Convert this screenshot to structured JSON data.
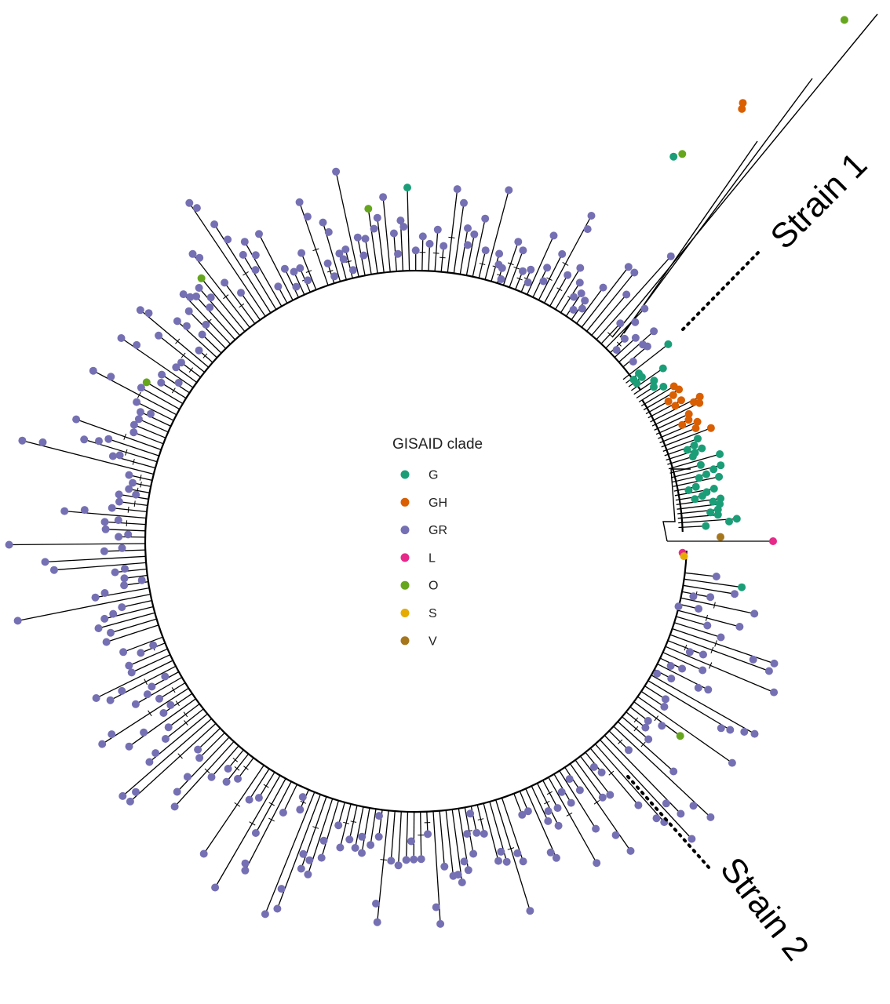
{
  "legend": {
    "title": "GISAID clade",
    "items": [
      {
        "label": "G",
        "color": "#1b9e77"
      },
      {
        "label": "GH",
        "color": "#d95f02"
      },
      {
        "label": "GR",
        "color": "#7570b3"
      },
      {
        "label": "L",
        "color": "#e7298a"
      },
      {
        "label": "O",
        "color": "#66a61e"
      },
      {
        "label": "S",
        "color": "#e6ab02"
      },
      {
        "label": "V",
        "color": "#a6761d"
      }
    ]
  },
  "annotations": [
    {
      "label": "Strain 1"
    },
    {
      "label": "Strain 2"
    }
  ],
  "tree": {
    "layout": "circular",
    "branch_color": "#000000",
    "dominant_clade": "GR",
    "clade_regions": [
      {
        "clade": "G"
      },
      {
        "clade": "GH"
      },
      {
        "clade": "GR"
      }
    ]
  }
}
